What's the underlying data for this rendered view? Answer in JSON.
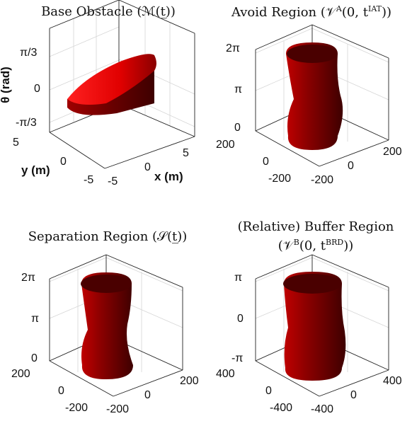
{
  "colors": {
    "surface_light": "#ff1a1a",
    "surface_mid": "#b50000",
    "surface_dark": "#5a0000",
    "axis": "#222222",
    "grid": "#d6d6d6"
  },
  "chart_data": [
    {
      "type": "surface3d",
      "title": "Base Obstacle (ℳ(t̲))",
      "xlabel": "x (m)",
      "ylabel": "y (m)",
      "zlabel": "θ (rad)",
      "xticks": [
        "-5",
        "0",
        "5"
      ],
      "yticks": [
        "-5",
        "0",
        "5"
      ],
      "zticks": [
        "-π/3",
        "0",
        "π/3"
      ],
      "xlim": [
        -5,
        5
      ],
      "ylim": [
        -5,
        5
      ],
      "zlim": [
        -1.047,
        1.047
      ],
      "grid": true
    },
    {
      "type": "surface3d",
      "title": "Avoid Region (𝒱",
      "title_sup": "A",
      "title_mid": "(0, t",
      "title_sup2": "IAT",
      "title_end": "))",
      "xticks": [
        "-200",
        "0",
        "200"
      ],
      "yticks": [
        "-200",
        "0",
        "200"
      ],
      "zticks": [
        "0",
        "π",
        "2π"
      ],
      "xlim": [
        -200,
        200
      ],
      "ylim": [
        -200,
        200
      ],
      "zlim": [
        0,
        6.283
      ],
      "grid": true
    },
    {
      "type": "surface3d",
      "title": "Separation Region (𝒮(t̲))",
      "xticks": [
        "-200",
        "0",
        "200"
      ],
      "yticks": [
        "-200",
        "0",
        "200"
      ],
      "zticks": [
        "0",
        "π",
        "2π"
      ],
      "xlim": [
        -200,
        200
      ],
      "ylim": [
        -200,
        200
      ],
      "zlim": [
        0,
        6.283
      ],
      "grid": true
    },
    {
      "type": "surface3d",
      "title_line1": "(Relative) Buffer Region",
      "title_line2_a": "(𝒱",
      "title_sup": "B",
      "title_line2_b": "(0, t",
      "title_sup2": "BRD",
      "title_line2_c": "))",
      "xticks": [
        "-400",
        "0",
        "400"
      ],
      "yticks": [
        "-400",
        "0",
        "400"
      ],
      "zticks": [
        "-π",
        "0",
        "π"
      ],
      "xlim": [
        -400,
        400
      ],
      "ylim": [
        -400,
        400
      ],
      "zlim": [
        -3.1416,
        3.1416
      ],
      "grid": true
    }
  ]
}
